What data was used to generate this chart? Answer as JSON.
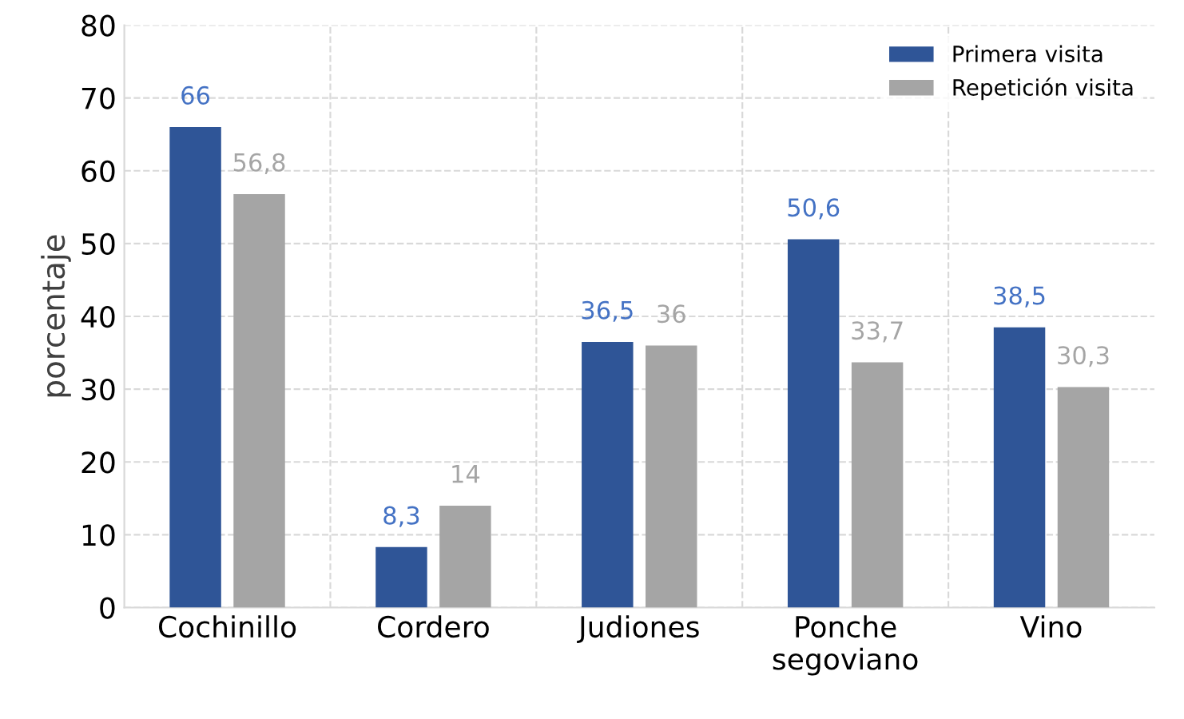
{
  "chart_data": {
    "type": "bar",
    "ylabel": "porcentaje",
    "categories": [
      "Cochinillo",
      "Cordero",
      "Judiones",
      "Ponche\nsegoviano",
      "Vino"
    ],
    "series": [
      {
        "name": "Primera visita",
        "color": "#2f5597",
        "values": [
          66,
          8.3,
          36.5,
          50.6,
          38.5
        ],
        "value_labels": [
          "66",
          "8,3",
          "36,5",
          "50,6",
          "38,5"
        ]
      },
      {
        "name": "Repetición visita",
        "color": "#a5a5a5",
        "values": [
          56.8,
          14,
          36,
          33.7,
          30.3
        ],
        "value_labels": [
          "56,8",
          "14",
          "36",
          "33,7",
          "30,3"
        ]
      }
    ],
    "ylim": [
      0,
      80
    ],
    "yticks": [
      0,
      10,
      20,
      30,
      40,
      50,
      60,
      70,
      80
    ],
    "grid": true,
    "legend": "top right"
  }
}
